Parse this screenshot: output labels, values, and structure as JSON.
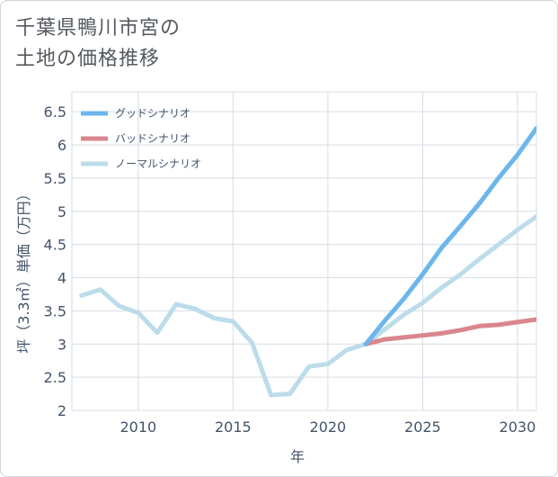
{
  "chart_data": {
    "type": "line",
    "title": "千葉県鴨川市宮の土地の価格推移",
    "title_lines": [
      "千葉県鴨川市宮の",
      "土地の価格推移"
    ],
    "xlabel": "年",
    "ylabel": "坪（3.3㎡）単価（万円）",
    "xlim": [
      2006.5,
      2031
    ],
    "ylim": [
      2,
      6.8
    ],
    "xticks": [
      2010,
      2015,
      2020,
      2025,
      2030
    ],
    "yticks": [
      2,
      2.5,
      3,
      3.5,
      4,
      4.5,
      5,
      5.5,
      6,
      6.5
    ],
    "legend_position": "top-left",
    "series": [
      {
        "name": "グッドシナリオ",
        "color": "#6cb6ec",
        "x": [
          2022,
          2023,
          2024,
          2025,
          2026,
          2027,
          2028,
          2029,
          2030,
          2031
        ],
        "y": [
          3.0,
          3.35,
          3.68,
          4.05,
          4.45,
          4.78,
          5.12,
          5.5,
          5.85,
          6.25
        ]
      },
      {
        "name": "バッドシナリオ",
        "color": "#d9868e",
        "x": [
          2022,
          2023,
          2024,
          2025,
          2026,
          2027,
          2028,
          2029,
          2030,
          2031
        ],
        "y": [
          3.0,
          3.07,
          3.1,
          3.13,
          3.16,
          3.21,
          3.27,
          3.29,
          3.33,
          3.37
        ]
      },
      {
        "name": "ノーマルシナリオ",
        "color": "#bcdcea",
        "x": [
          2007,
          2008,
          2009,
          2010,
          2011,
          2012,
          2013,
          2014,
          2015,
          2016,
          2017,
          2018,
          2019,
          2020,
          2021,
          2022,
          2023,
          2024,
          2025,
          2026,
          2027,
          2028,
          2029,
          2030,
          2031
        ],
        "y": [
          3.73,
          3.82,
          3.57,
          3.47,
          3.17,
          3.6,
          3.53,
          3.39,
          3.34,
          3.02,
          2.23,
          2.25,
          2.66,
          2.7,
          2.91,
          3.0,
          3.22,
          3.44,
          3.62,
          3.85,
          4.05,
          4.28,
          4.5,
          4.72,
          4.92
        ]
      }
    ]
  }
}
